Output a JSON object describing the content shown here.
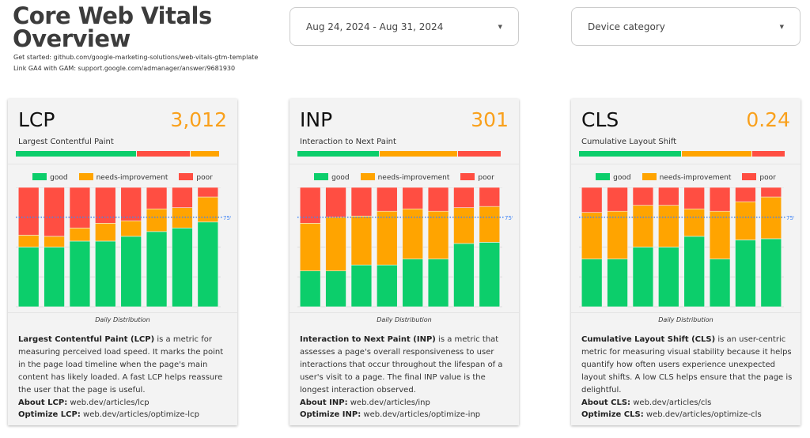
{
  "header": {
    "title_line1": "Core Web Vitals",
    "title_line2": "Overview",
    "get_started": "Get started: github.com/google-marketing-solutions/web-vitals-gtm-template",
    "link_ga4": "Link GA4 with GAM: support.google.com/admanager/answer/9681930"
  },
  "filters": {
    "date_range": "Aug 24, 2024 - Aug 31, 2024",
    "device": "Device category"
  },
  "colors": {
    "good": "#0cce6b",
    "needs-improvement": "#ffa400",
    "poor": "#ff4e42",
    "accent": "#f9a01b",
    "threshold": "#4285f4"
  },
  "legend": {
    "good": "good",
    "ni": "needs-improvement",
    "poor": "poor"
  },
  "chart_label": "Daily Distribution",
  "threshold_label": "75%",
  "cards": [
    {
      "abbr": "LCP",
      "value": "3,012",
      "name": "Largest Contentful Paint",
      "desc_bold": "Largest Contentful Paint (LCP)",
      "desc": " is a metric for measuring perceived load speed. It marks the point in the page load timeline when the page's main content has likely loaded. A fast LCP helps reassure the user that the page is useful.",
      "about_label": "About LCP:",
      "about_link": " web.dev/articles/lcp",
      "optimize_label": "Optimize LCP:",
      "optimize_link": " web.dev/articles/optimize-lcp"
    },
    {
      "abbr": "INP",
      "value": "301",
      "name": "Interaction to Next Paint",
      "desc_bold": "Interaction to Next Paint (INP)",
      "desc": " is a metric that assesses a page's overall responsiveness to user interactions that occur throughout the lifespan of a user's visit to a page. The final INP value is the longest interaction observed.",
      "about_label": "About INP:",
      "about_link": " web.dev/articles/inp",
      "optimize_label": "Optimize INP:",
      "optimize_link": " web.dev/articles/optimize-inp"
    },
    {
      "abbr": "CLS",
      "value": "0.24",
      "name": "Cumulative Layout Shift",
      "desc_bold": "Cumulative Layout Shift (CLS)",
      "desc": " is an user-centric metric for measuring visual stability because it helps quantify how often users experience unexpected layout shifts. A low CLS helps ensure that the page is delightful.",
      "about_label": "About CLS:",
      "about_link": " web.dev/articles/cls",
      "optimize_label": "Optimize CLS:",
      "optimize_link": " web.dev/articles/optimize-cls"
    }
  ],
  "chart_data": [
    {
      "type": "bar",
      "stacked": true,
      "metric": "LCP",
      "summary": [
        {
          "k": "good",
          "v": 0.59
        },
        {
          "k": "poor",
          "v": 0.26
        },
        {
          "k": "needs-improvement",
          "v": 0.14
        }
      ],
      "threshold": 0.75,
      "ylim": [
        0,
        1
      ],
      "grid": true,
      "legend": "top",
      "series": [
        {
          "name": "good",
          "values": [
            0.5,
            0.5,
            0.55,
            0.55,
            0.59,
            0.63,
            0.66,
            0.71
          ]
        },
        {
          "name": "needs-improvement",
          "values": [
            0.1,
            0.09,
            0.11,
            0.15,
            0.13,
            0.19,
            0.17,
            0.21
          ]
        },
        {
          "name": "poor",
          "values": [
            0.4,
            0.41,
            0.34,
            0.3,
            0.28,
            0.18,
            0.17,
            0.08
          ]
        }
      ]
    },
    {
      "type": "bar",
      "stacked": true,
      "metric": "INP",
      "summary": [
        {
          "k": "good",
          "v": 0.4
        },
        {
          "k": "needs-improvement",
          "v": 0.38
        },
        {
          "k": "poor",
          "v": 0.21
        }
      ],
      "threshold": 0.75,
      "ylim": [
        0,
        1
      ],
      "grid": true,
      "legend": "top",
      "series": [
        {
          "name": "good",
          "values": [
            0.3,
            0.3,
            0.35,
            0.35,
            0.4,
            0.4,
            0.53,
            0.54
          ]
        },
        {
          "name": "needs-improvement",
          "values": [
            0.4,
            0.45,
            0.41,
            0.45,
            0.42,
            0.4,
            0.3,
            0.3
          ]
        },
        {
          "name": "poor",
          "values": [
            0.3,
            0.25,
            0.24,
            0.2,
            0.18,
            0.2,
            0.17,
            0.16
          ]
        }
      ]
    },
    {
      "type": "bar",
      "stacked": true,
      "metric": "CLS",
      "summary": [
        {
          "k": "good",
          "v": 0.5
        },
        {
          "k": "needs-improvement",
          "v": 0.34
        },
        {
          "k": "poor",
          "v": 0.16
        }
      ],
      "threshold": 0.75,
      "ylim": [
        0,
        1
      ],
      "grid": true,
      "legend": "top",
      "series": [
        {
          "name": "good",
          "values": [
            0.4,
            0.4,
            0.5,
            0.5,
            0.59,
            0.4,
            0.56,
            0.57
          ]
        },
        {
          "name": "needs-improvement",
          "values": [
            0.39,
            0.4,
            0.35,
            0.35,
            0.23,
            0.4,
            0.32,
            0.35
          ]
        },
        {
          "name": "poor",
          "values": [
            0.21,
            0.2,
            0.15,
            0.15,
            0.18,
            0.2,
            0.12,
            0.08
          ]
        }
      ]
    }
  ]
}
